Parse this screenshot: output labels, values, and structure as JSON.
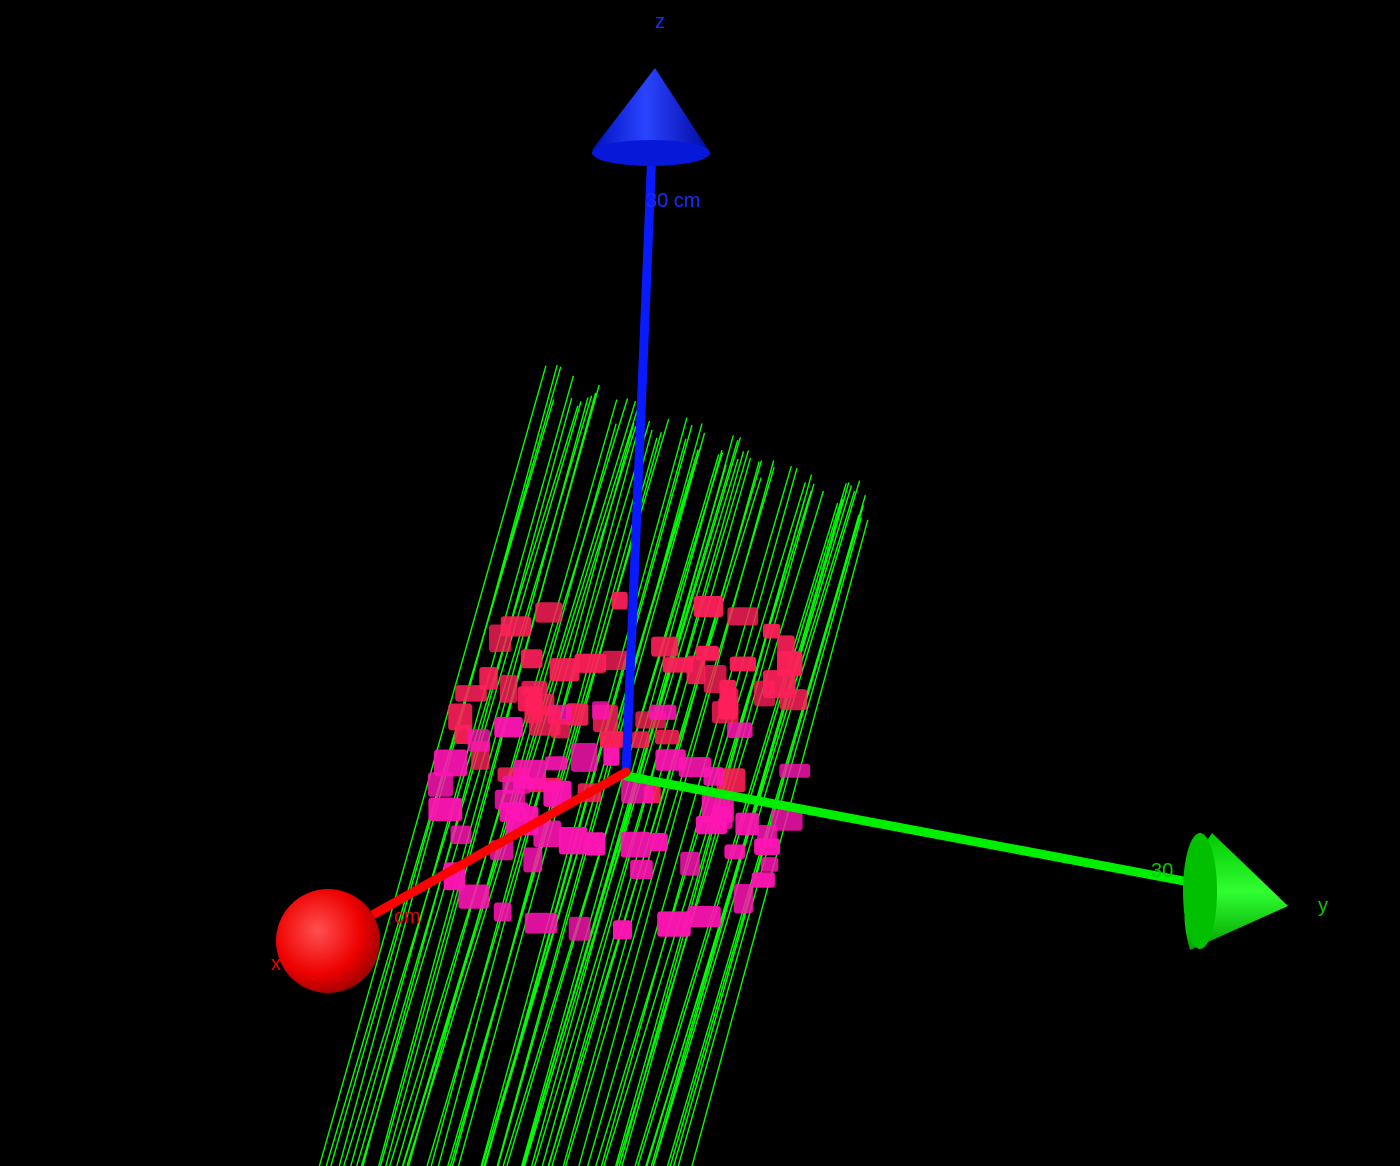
{
  "scene": {
    "background": "#000000",
    "axes": {
      "x": {
        "name": "x",
        "tick_label": "cm",
        "color": "#ff0000"
      },
      "y": {
        "name": "y",
        "tick_label": "30",
        "color": "#00ee00"
      },
      "z": {
        "name": "z",
        "tick_label": "30 cm",
        "color": "#0a1aff"
      }
    },
    "tracks": {
      "color": "#00ff00",
      "count": 68
    },
    "hits": {
      "colors": [
        "#ff1f5a",
        "#ff14b4"
      ]
    }
  }
}
